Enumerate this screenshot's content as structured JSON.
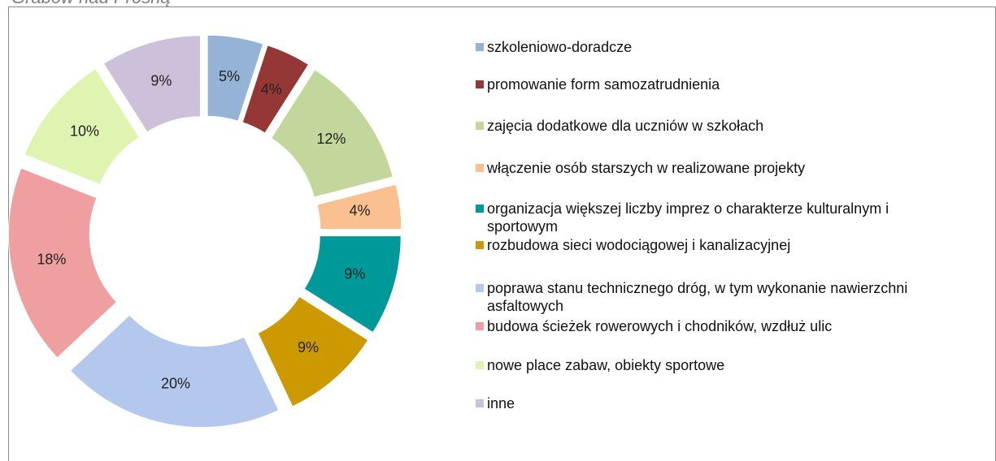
{
  "chart_data": {
    "type": "donut",
    "title": "Grabów nad Prosną",
    "categories": [
      "szkoleniowo-doradcze",
      "promowanie form samozatrudnienia",
      "zajęcia dodatkowe dla uczniów w szkołach",
      "włączenie osób starszych w realizowane projekty",
      "organizacja większej liczby imprez o charakterze kulturalnym i sportowym",
      "rozbudowa sieci wodociągowej i kanalizacyjnej",
      "poprawa stanu technicznego dróg, w tym wykonanie nawierzchni asfaltowych",
      "budowa ścieżek rowerowych i chodników, wzdłuż ulic",
      "nowe place zabaw, obiekty sportowe",
      "inne"
    ],
    "values": [
      5,
      4,
      12,
      4,
      9,
      9,
      20,
      18,
      10,
      9
    ],
    "value_labels": [
      "5%",
      "4%",
      "12%",
      "4%",
      "9%",
      "9%",
      "20%",
      "18%",
      "10%",
      "9%"
    ],
    "colors": [
      "#95b3d7",
      "#953735",
      "#c3d69b",
      "#fac090",
      "#009999",
      "#cc9900",
      "#b4c8ee",
      "#ef9f9f",
      "#def4b0",
      "#ccc0da"
    ],
    "legend": "right"
  }
}
